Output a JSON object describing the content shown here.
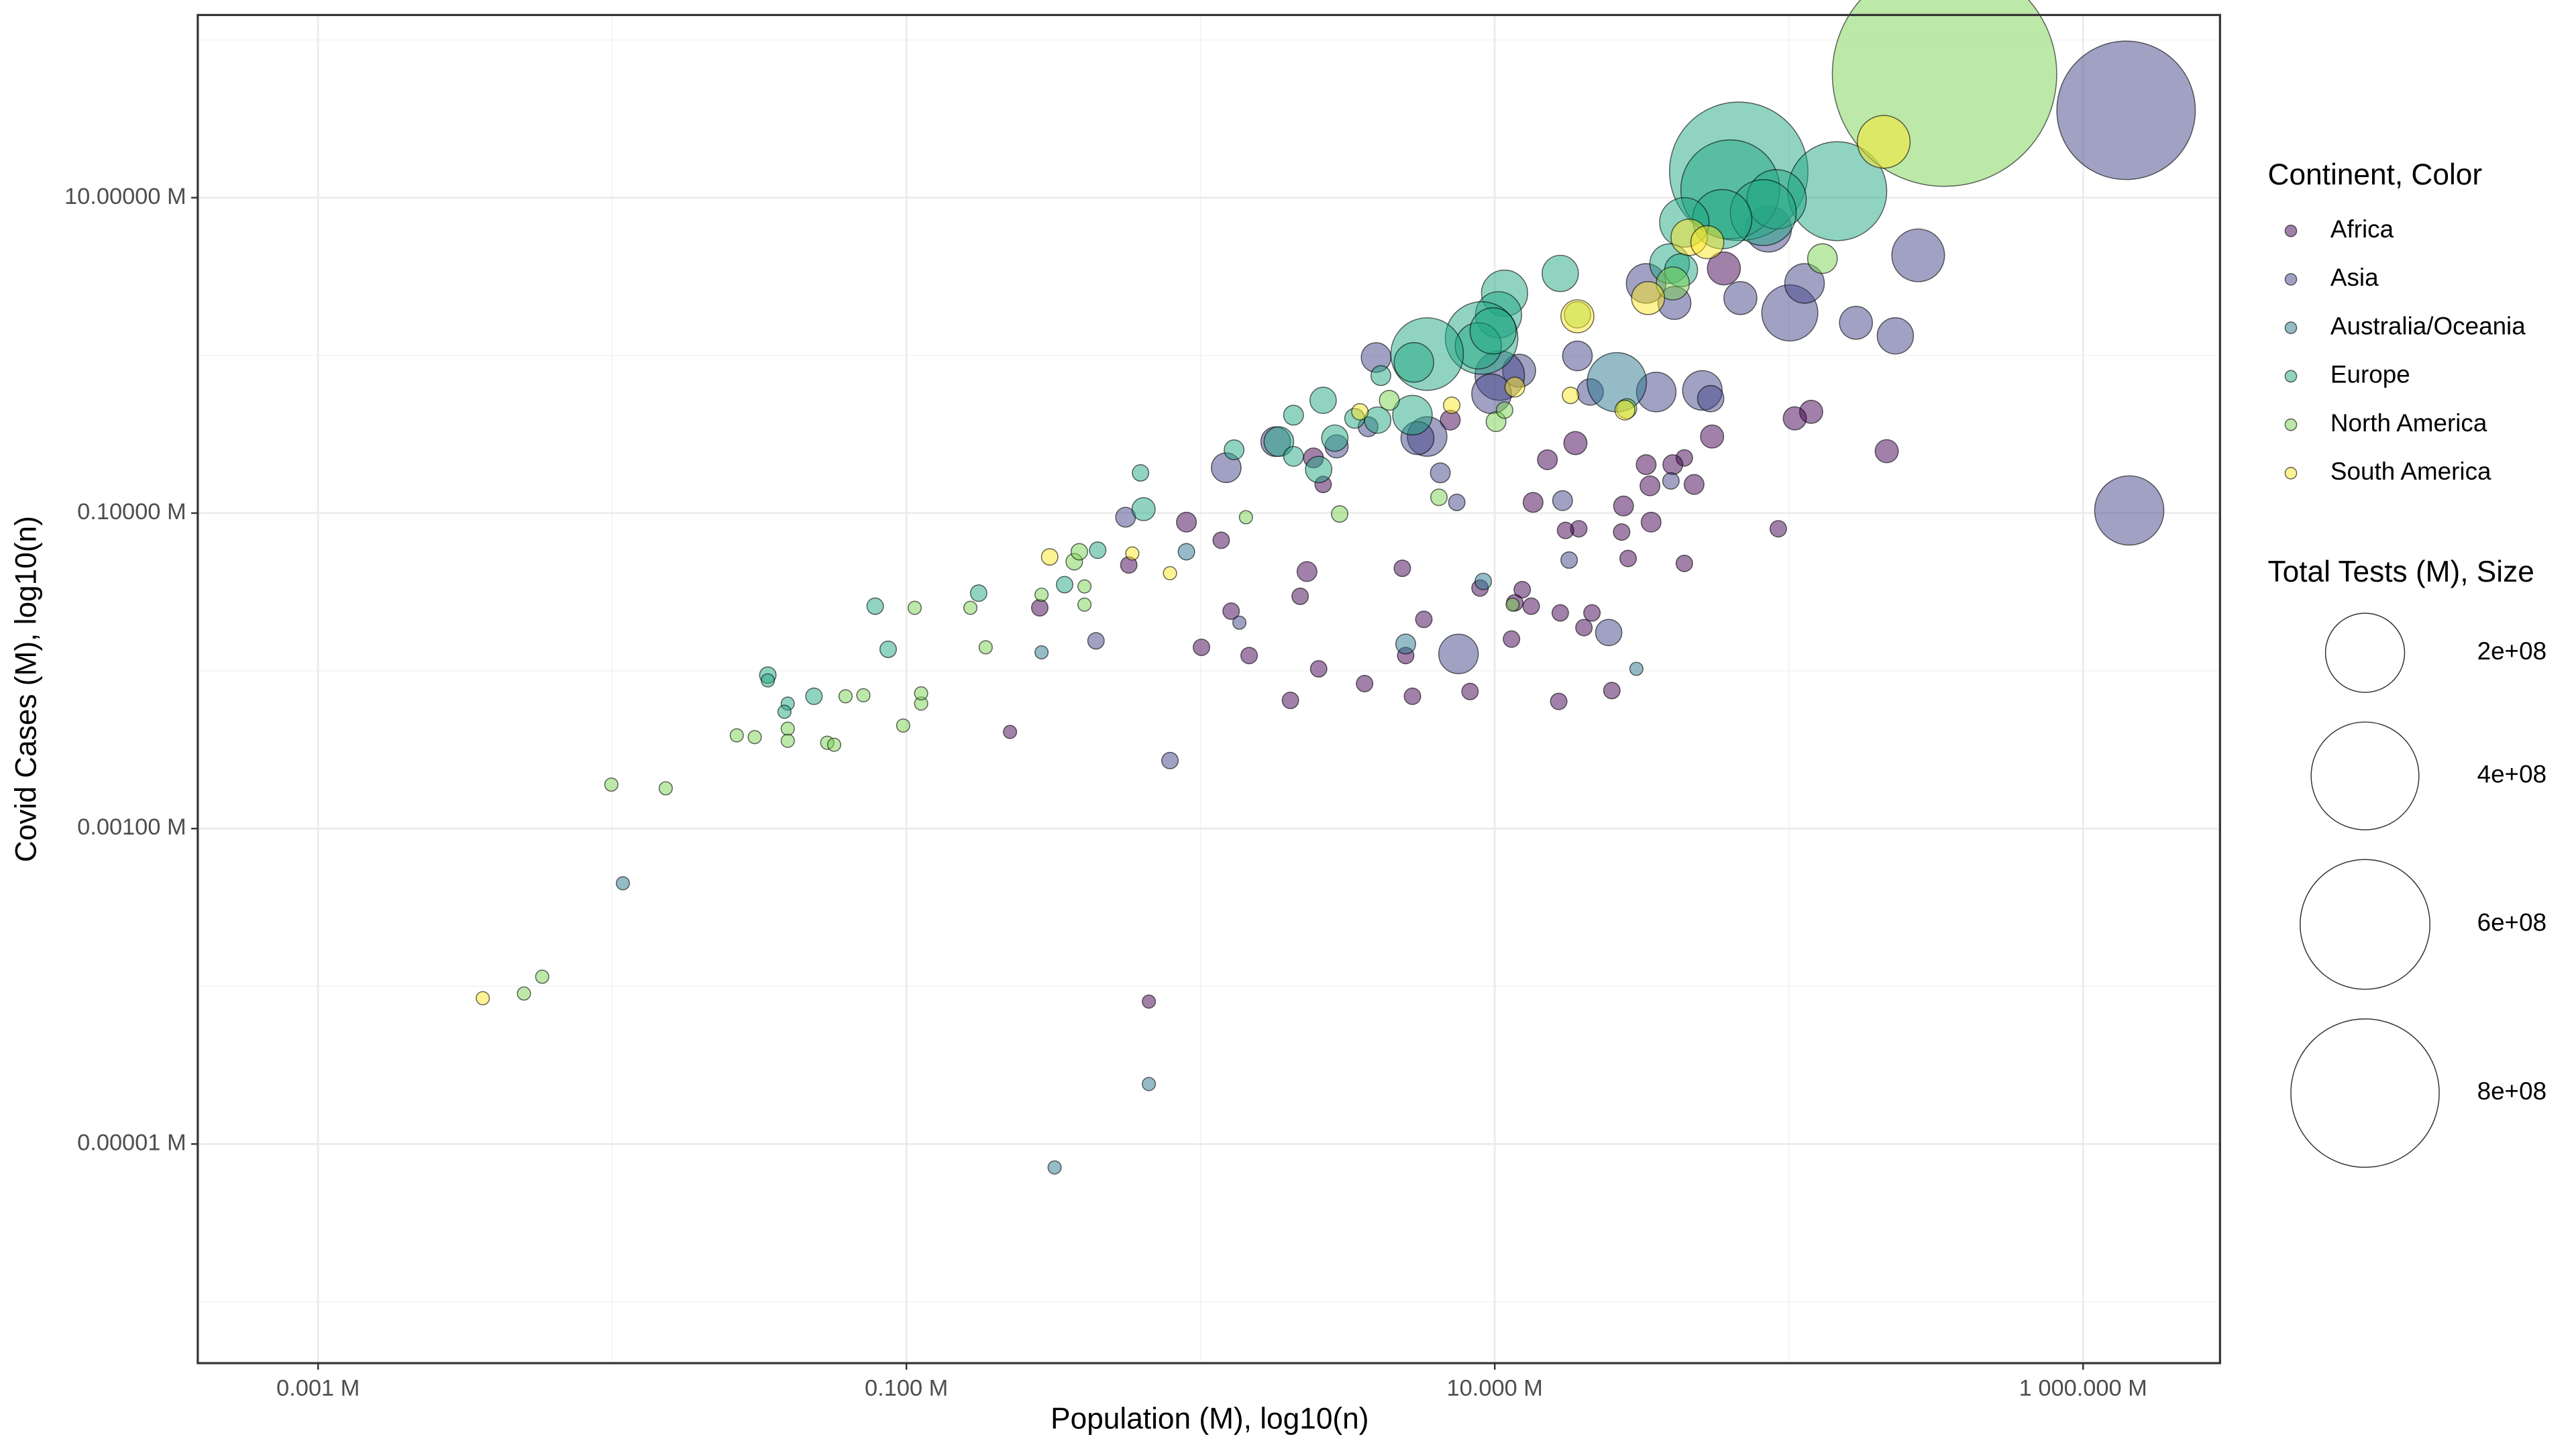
{
  "chart_data": {
    "type": "bubble",
    "x_label": "Population (M), log10(n)",
    "y_label": "Covid Cases (M), log10(n)",
    "xscale": "log",
    "yscale": "log",
    "grid": true,
    "xlim": [
      0.00039,
      2920
    ],
    "ylim": [
      4.08e-07,
      144
    ],
    "xticks": [
      {
        "value": 0.001,
        "label": "0.001 M"
      },
      {
        "value": 0.1,
        "label": "0.100 M"
      },
      {
        "value": 10,
        "label": "10.000 M"
      },
      {
        "value": 1000,
        "label": "1 000.000 M"
      }
    ],
    "yticks": [
      {
        "value": 1e-05,
        "label": "0.00001 M"
      },
      {
        "value": 0.001,
        "label": "0.00100 M"
      },
      {
        "value": 0.1,
        "label": "0.10000 M"
      },
      {
        "value": 10,
        "label": "10.00000 M"
      }
    ],
    "x_minor_ticks": [
      0.01,
      1,
      100
    ],
    "y_minor_ticks": [
      1e-06,
      0.0001,
      0.01,
      1,
      100
    ],
    "legend_title": "Continent, Color",
    "size_title": "Total Tests (M), Size",
    "size_breaks": [
      {
        "value": 200000000,
        "label": "2e+08"
      },
      {
        "value": 400000000,
        "label": "4e+08"
      },
      {
        "value": 600000000,
        "label": "6e+08"
      },
      {
        "value": 800000000,
        "label": "8e+08"
      }
    ],
    "legend_position": "right",
    "series": [
      {
        "name": "Africa",
        "color": "#440154",
        "x": [
          60.1,
          54.8,
          47.6,
          44.1,
          119,
          104.7,
          215,
          92.0,
          40.3,
          32.7,
          33.7,
          34.0,
          27.4,
          28.4,
          27.0,
          44.1,
          25.0,
          18.8,
          15.1,
          13.5,
          19.3,
          17.4,
          16.7,
          20.1,
          21.4,
          16.5,
          12.4,
          13.3,
          11.7,
          8.91,
          11.4,
          8.24,
          7.06,
          5.74,
          4.85,
          4.98,
          5.25,
          3.61,
          2.52,
          2.02,
          2.61,
          2.42,
          2.3,
          2.18,
          1.462,
          1.27,
          1.175,
          1.007,
          0.895,
          0.57,
          0.284,
          0.225,
          0.667
        ],
        "values": [
          3.56,
          0.306,
          0.152,
          0.224,
          0.439,
          0.399,
          0.247,
          0.0796,
          0.203,
          0.203,
          0.149,
          0.0877,
          0.111,
          0.0516,
          0.0759,
          0.048,
          0.0075,
          0.278,
          0.218,
          0.117,
          0.0796,
          0.0777,
          0.0233,
          0.0188,
          0.0233,
          0.0064,
          0.0327,
          0.0257,
          0.027,
          0.0335,
          0.0159,
          0.0074,
          0.389,
          0.0212,
          0.0447,
          0.0125,
          0.0069,
          0.0083,
          0.0103,
          0.0065,
          0.152,
          0.224,
          0.0426,
          0.0297,
          0.0125,
          0.0239,
          0.0673,
          0.0141,
          0.0877,
          0.0469,
          0.0251,
          0.0041,
          8e-05
        ],
        "size": [
          22200000,
          7300000,
          4100000,
          1800000,
          7300000,
          7300000,
          7300000,
          1800000,
          4100000,
          4100000,
          4100000,
          4100000,
          4100000,
          1800000,
          1800000,
          1800000,
          1800000,
          7300000,
          4100000,
          4100000,
          1800000,
          1800000,
          1800000,
          1800000,
          1800000,
          1800000,
          1800000,
          1800000,
          1800000,
          1800000,
          1800000,
          1800000,
          4100000,
          1800000,
          1800000,
          1800000,
          1800000,
          1800000,
          1800000,
          1800000,
          1800000,
          4100000,
          4100000,
          1800000,
          1800000,
          1800000,
          1800000,
          1800000,
          4100000,
          1800000,
          1800000,
          450000,
          450000
        ]
      },
      {
        "name": "Asia",
        "color": "#414487",
        "x": [
          1400,
          1435,
          275,
          230,
          169,
          100.7,
          113,
          85.1,
          68.4,
          40.8,
          32.7,
          50.8,
          54.2,
          35.4,
          19.1,
          21.1,
          7.53,
          24.4,
          17.9,
          17.0,
          12.1,
          10.4,
          9.75,
          5.89,
          5.46,
          6.53,
          7.43,
          3.95,
          3.71,
          2.9,
          1.222,
          1.8,
          1.355,
          0.556,
          0.441,
          0.787,
          39.7
        ],
        "values": [
          35.8,
          0.104,
          4.31,
          1.33,
          1.61,
          1.86,
          2.86,
          6.34,
          2.31,
          2.15,
          2.86,
          0.6,
          0.532,
          0.586,
          0.993,
          0.586,
          0.0128,
          0.0175,
          0.0504,
          0.12,
          0.8,
          0.745,
          0.571,
          0.306,
          0.299,
          0.18,
          0.117,
          0.97,
          0.353,
          0.265,
          0.194,
          0.284,
          0.0202,
          0.0942,
          0.0155,
          0.0027,
          0.16
        ],
        "size": [
          690000000,
          147000000,
          76600000,
          29000000,
          22200000,
          88900000,
          36700000,
          54900000,
          22200000,
          22200000,
          36700000,
          36700000,
          11300000,
          36700000,
          16300000,
          11300000,
          36700000,
          11300000,
          1800000,
          4100000,
          22200000,
          65300000,
          36700000,
          36700000,
          22200000,
          4100000,
          1800000,
          16300000,
          4100000,
          7300000,
          16300000,
          16300000,
          450000,
          4100000,
          1800000,
          1800000,
          1800000
        ]
      },
      {
        "name": "Australia/Oceania",
        "color": "#2A788E",
        "x": [
          26.0,
          4.98,
          0.01087,
          0.667,
          0.319,
          0.288,
          0.895,
          30.3,
          9.14
        ],
        "values": [
          0.676,
          0.0148,
          0.00045,
          2.4e-05,
          7.1e-06,
          0.0131,
          0.0569,
          0.0103,
          0.0369
        ],
        "size": [
          102000000,
          4100000,
          450000,
          450000,
          450000,
          450000,
          1800000,
          450000,
          1800000
        ]
      },
      {
        "name": "Europe",
        "color": "#22A884",
        "x": [
          67.5,
          63.2,
          146,
          90.8,
          81.8,
          59.3,
          44.1,
          39.3,
          43.0,
          16.7,
          10.8,
          10.3,
          9.02,
          8.79,
          9.87,
          5.89,
          5.31,
          5.25,
          4.0,
          2.86,
          2.52,
          2.07,
          1.845,
          1.3,
          2.61,
          0.625,
          0.64,
          2.07,
          4.1,
          3.34,
          0.447,
          0.345,
          0.176,
          0.0783,
          0.0867,
          0.0338,
          0.0338,
          0.0395,
          0.0385,
          0.0485
        ],
        "values": [
          14.7,
          11.3,
          11.0,
          9.77,
          8.05,
          7.31,
          6.97,
          3.82,
          3.47,
          3.31,
          2.48,
          1.81,
          1.29,
          1.15,
          1.43,
          1.02,
          0.903,
          0.418,
          0.389,
          0.299,
          0.189,
          0.418,
          0.284,
          0.252,
          0.519,
          0.18,
          0.106,
          0.229,
          0.745,
          0.399,
          0.0582,
          0.0352,
          0.0311,
          0.0257,
          0.0137,
          0.0094,
          0.0087,
          0.0062,
          0.0055,
          0.0069
        ],
        "size": [
          690000000,
          331000000,
          331000000,
          102000000,
          131000000,
          102000000,
          65300000,
          36700000,
          22200000,
          29000000,
          54900000,
          54900000,
          164000000,
          54900000,
          54900000,
          164000000,
          36700000,
          36700000,
          11300000,
          11300000,
          11300000,
          4100000,
          16300000,
          4100000,
          11300000,
          1800000,
          7300000,
          4100000,
          4100000,
          4100000,
          1800000,
          1800000,
          1800000,
          1800000,
          1800000,
          1800000,
          450000,
          450000,
          450000,
          1800000
        ]
      },
      {
        "name": "North America",
        "color": "#7AD151",
        "x": [
          338,
          130,
          0.00501,
          0.00578,
          0.00993,
          0.0152,
          0.0265,
          0.0305,
          0.0395,
          0.0395,
          0.0538,
          0.0568,
          0.0621,
          0.0714,
          0.0975,
          0.1122,
          0.1122,
          0.1067,
          0.186,
          0.165,
          0.288,
          0.372,
          0.403,
          0.403,
          1.426,
          2.97,
          4.38,
          6.46,
          10.1,
          10.8,
          11.5,
          40.3,
          28.1,
          0.387,
          19.1
        ],
        "values": [
          60.7,
          4.11,
          9e-05,
          0.000115,
          0.0019,
          0.0018,
          0.0039,
          0.0038,
          0.0043,
          0.0036,
          0.0035,
          0.0034,
          0.0069,
          0.007,
          0.0045,
          0.0062,
          0.0072,
          0.0251,
          0.0141,
          0.0251,
          0.0304,
          0.0492,
          0.0343,
          0.0263,
          0.0942,
          0.0988,
          0.519,
          0.126,
          0.38,
          0.45,
          0.0263,
          2.86,
          0.46,
          0.0569,
          1.81
        ],
        "size": [
          1920000000,
          16300000,
          450000,
          450000,
          450000,
          450000,
          450000,
          450000,
          450000,
          450000,
          450000,
          450000,
          450000,
          450000,
          450000,
          450000,
          450000,
          450000,
          450000,
          450000,
          450000,
          1800000,
          450000,
          450000,
          450000,
          1800000,
          4100000,
          1800000,
          4100000,
          1800000,
          450000,
          22200000,
          4100000,
          1800000,
          11300000
        ]
      },
      {
        "name": "South America",
        "color": "#FDE725",
        "x": [
          0.00363,
          0.307,
          0.586,
          0.787,
          3.48,
          7.14,
          11.7,
          18.1,
          27.7,
          19.1,
          33.2,
          45.8,
          52.8,
          210
        ],
        "values": [
          8.4e-05,
          0.0528,
          0.0555,
          0.0416,
          0.439,
          0.483,
          0.63,
          0.558,
          0.45,
          1.77,
          2.31,
          5.61,
          5.22,
          22.6
        ],
        "size": [
          450000,
          1800000,
          450000,
          450000,
          1800000,
          1800000,
          4100000,
          1800000,
          4100000,
          22200000,
          22200000,
          29000000,
          22200000,
          76600000
        ]
      }
    ]
  }
}
